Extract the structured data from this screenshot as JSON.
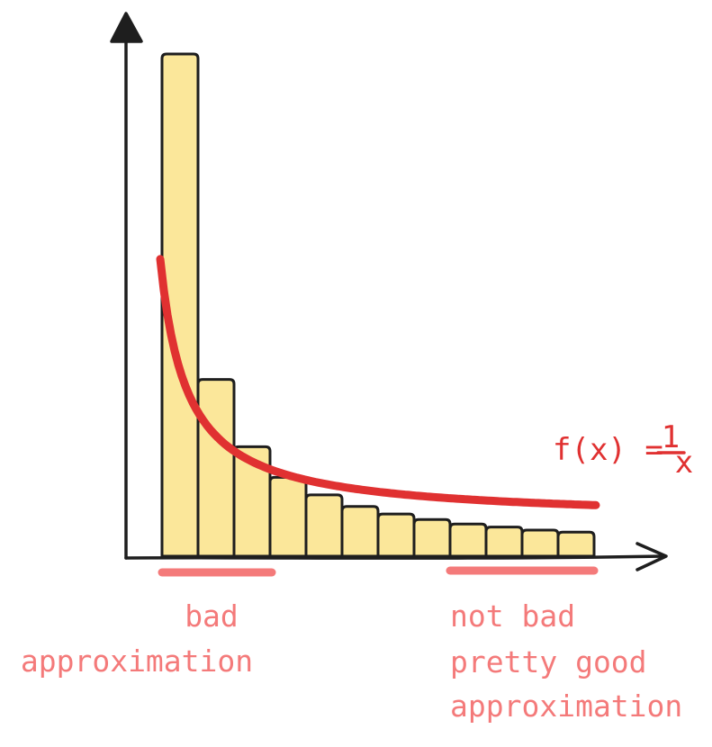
{
  "function_label": {
    "lhs": "f(x) =",
    "numerator": "1",
    "denominator": "x"
  },
  "left_note": {
    "line1": "bad",
    "line2": "approximation"
  },
  "right_note": {
    "line1": "not bad",
    "line2": "pretty good",
    "line3": "approximation"
  },
  "bar_heights": [
    1.0,
    0.352,
    0.218,
    0.157,
    0.122,
    0.099,
    0.084,
    0.073,
    0.064,
    0.058,
    0.052,
    0.048
  ],
  "colors": {
    "bar_fill": "#fbe79a",
    "bar_stroke": "#1e1e1e",
    "curve": "#e03131",
    "annotation": "#f47a7a",
    "axis": "#1e1e1e"
  }
}
